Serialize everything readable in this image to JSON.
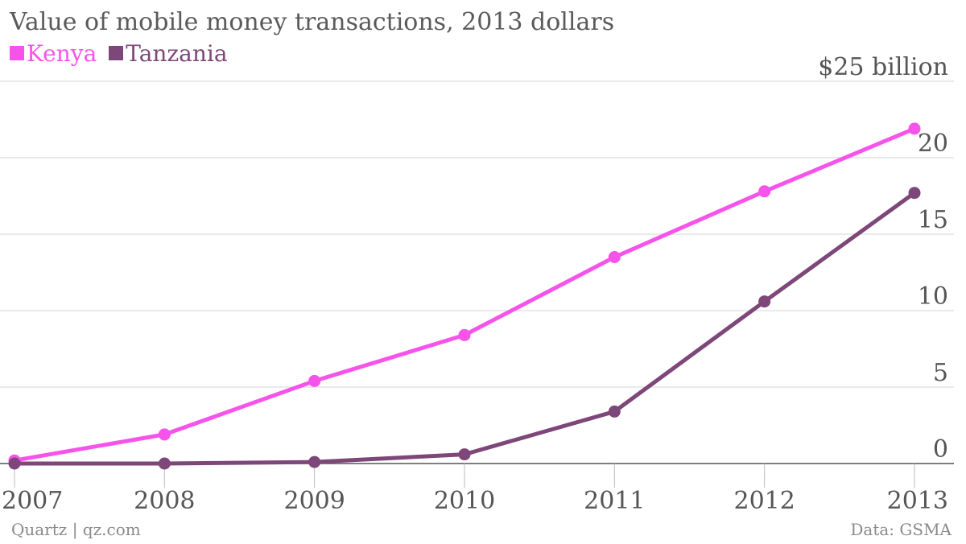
{
  "chart_data": {
    "type": "line",
    "title": "Value of mobile money transactions, 2013 dollars",
    "x": [
      "2007",
      "2008",
      "2009",
      "2010",
      "2011",
      "2012",
      "2013"
    ],
    "series": [
      {
        "name": "Kenya",
        "color": "#f653ea",
        "values": [
          0.2,
          1.9,
          5.4,
          8.4,
          13.5,
          17.8,
          21.9
        ]
      },
      {
        "name": "Tanzania",
        "color": "#7e4779",
        "values": [
          0.0,
          0.0,
          0.1,
          0.6,
          3.4,
          10.6,
          17.7
        ]
      }
    ],
    "yticks": [
      {
        "value": 25,
        "label": "$25 billion"
      },
      {
        "value": 20,
        "label": "20"
      },
      {
        "value": 15,
        "label": "15"
      },
      {
        "value": 10,
        "label": "10"
      },
      {
        "value": 5,
        "label": "5"
      },
      {
        "value": 0,
        "label": "0"
      }
    ],
    "ylim": [
      0,
      25
    ],
    "grid": true,
    "legend": "top-left"
  },
  "footer": {
    "source_left": "Quartz | qz.com",
    "source_right": "Data: GSMA"
  }
}
